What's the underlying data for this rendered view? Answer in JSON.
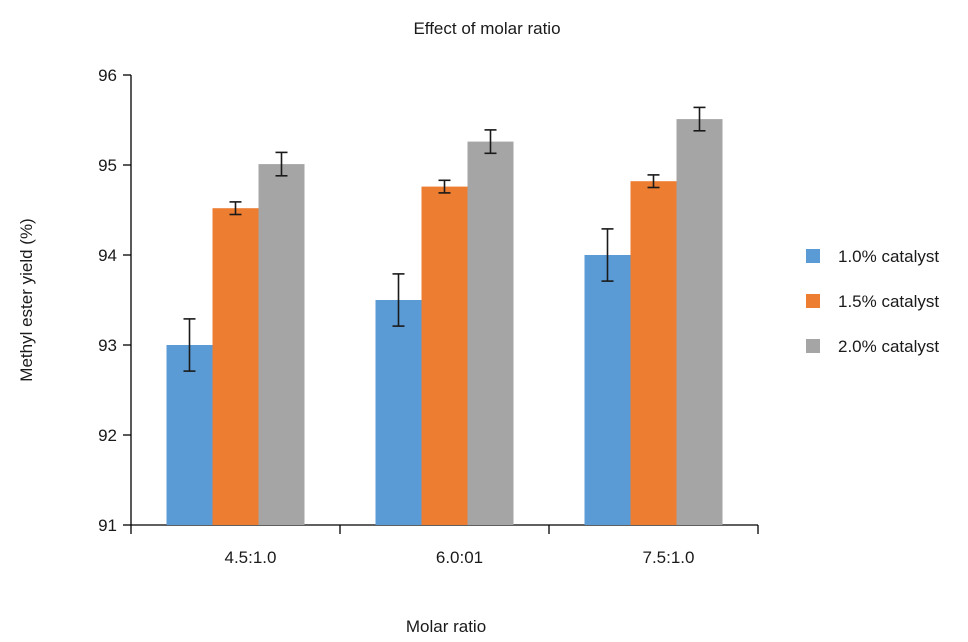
{
  "chart_data": {
    "type": "bar",
    "title": "Effect of molar ratio",
    "xlabel": "Molar ratio",
    "ylabel": "Methyl ester yield (%)",
    "categories": [
      "4.5:1.0",
      "6.0:01",
      "7.5:1.0"
    ],
    "ylim": [
      91,
      96
    ],
    "yticks": [
      "91",
      "92",
      "93",
      "94",
      "95",
      "96"
    ],
    "grid": false,
    "legend_position": "right",
    "series": [
      {
        "name": "1.0% catalyst",
        "color": "#5b9bd5",
        "values": [
          93.0,
          93.5,
          94.0
        ],
        "errors": [
          0.29,
          0.29,
          0.29
        ]
      },
      {
        "name": "1.5% catalyst",
        "color": "#ed7d31",
        "values": [
          94.52,
          94.76,
          94.82
        ],
        "errors": [
          0.07,
          0.07,
          0.07
        ]
      },
      {
        "name": "2.0% catalyst",
        "color": "#a5a5a5",
        "values": [
          95.01,
          95.26,
          95.51
        ],
        "errors": [
          0.13,
          0.13,
          0.13
        ]
      }
    ]
  }
}
